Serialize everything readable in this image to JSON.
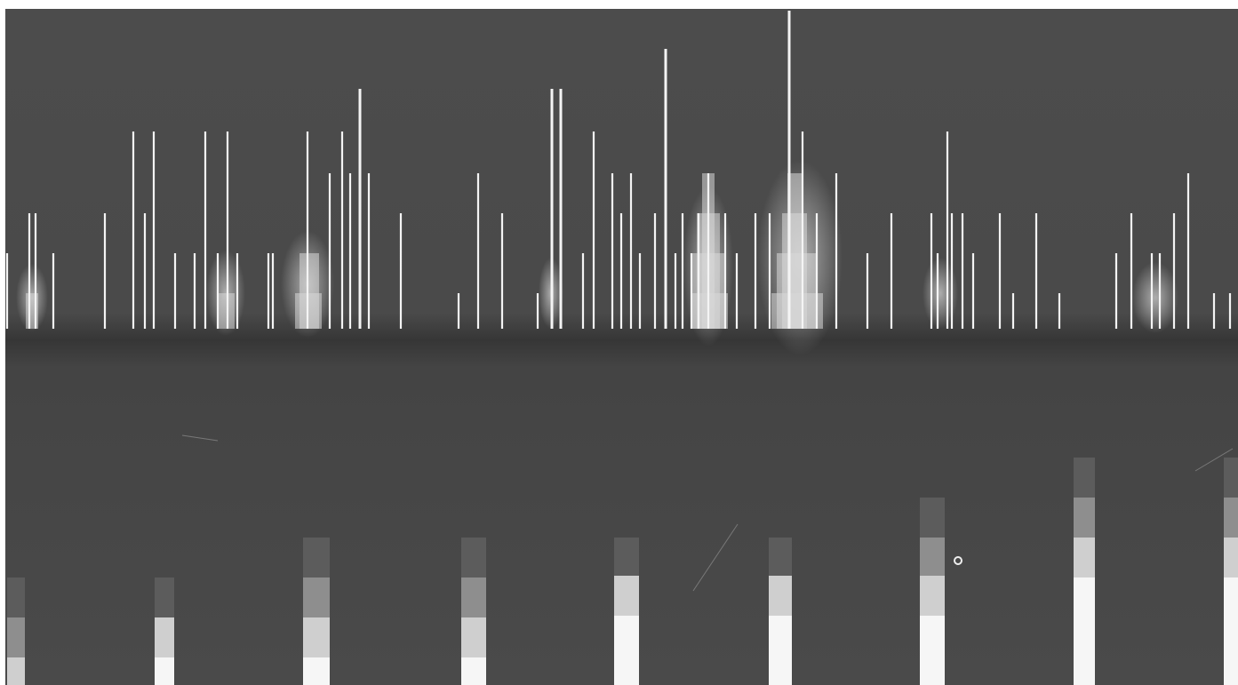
{
  "image": {
    "subject": "spectrogram-plate",
    "colors": {
      "background": "#4a4a4a",
      "dark_band": "#383838",
      "line": "#f4f4f4",
      "step_mid": "#8e8e8e",
      "step_light": "#cfcfcf"
    }
  }
}
